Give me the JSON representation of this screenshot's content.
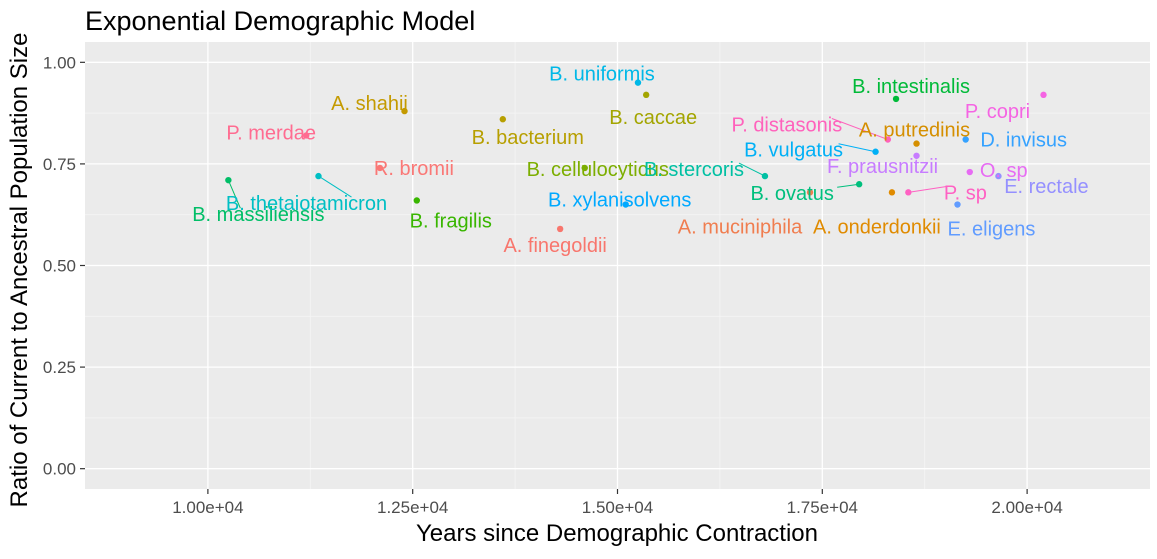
{
  "chart_data": {
    "type": "scatter",
    "title": "Exponential Demographic Model",
    "xlabel": "Years since Demographic Contraction",
    "ylabel": "Ratio of Current to Ancestral Population Size",
    "xlim": [
      8500,
      21500
    ],
    "ylim": [
      -0.05,
      1.05
    ],
    "x_ticks": [
      10000,
      12500,
      15000,
      17500,
      20000
    ],
    "x_tick_labels": [
      "1.00e+04",
      "1.25e+04",
      "1.50e+04",
      "1.75e+04",
      "2.00e+04"
    ],
    "y_ticks": [
      0,
      0.25,
      0.5,
      0.75,
      1.0
    ],
    "y_tick_labels": [
      "0.00",
      "0.25",
      "0.50",
      "0.75",
      "1.00"
    ],
    "grid": true,
    "legend": "none",
    "panel_background": "#EBEBEB",
    "points": [
      {
        "label": "A. finegoldii",
        "x": 14300,
        "y": 0.59,
        "color": "#F8766D"
      },
      {
        "label": "A. muciniphila",
        "x": 17350,
        "y": 0.68,
        "color": "#F07D4F"
      },
      {
        "label": "A. onderdonkii",
        "x": 18350,
        "y": 0.68,
        "color": "#E08B00"
      },
      {
        "label": "A. putredinis",
        "x": 18650,
        "y": 0.8,
        "color": "#D58F00"
      },
      {
        "label": "A. shahii",
        "x": 12400,
        "y": 0.88,
        "color": "#C49A00"
      },
      {
        "label": "B. bacterium",
        "x": 13600,
        "y": 0.86,
        "color": "#B79F00"
      },
      {
        "label": "B. caccae",
        "x": 15350,
        "y": 0.92,
        "color": "#A3A500"
      },
      {
        "label": "B. cellulocyticus",
        "x": 14600,
        "y": 0.74,
        "color": "#7CAE00"
      },
      {
        "label": "B. fragilis",
        "x": 12550,
        "y": 0.66,
        "color": "#39B600"
      },
      {
        "label": "B. intestinalis",
        "x": 18400,
        "y": 0.91,
        "color": "#00BA38"
      },
      {
        "label": "B. massiliensis",
        "x": 10250,
        "y": 0.71,
        "color": "#00BE67"
      },
      {
        "label": "B. ovatus",
        "x": 17950,
        "y": 0.7,
        "color": "#00BF7D"
      },
      {
        "label": "B. stercoris",
        "x": 16800,
        "y": 0.72,
        "color": "#00C0A3"
      },
      {
        "label": "B. thetaiotamicron",
        "x": 11350,
        "y": 0.72,
        "color": "#00BFC4"
      },
      {
        "label": "B. uniformis",
        "x": 15250,
        "y": 0.95,
        "color": "#00B8E7"
      },
      {
        "label": "B. vulgatus",
        "x": 18150,
        "y": 0.78,
        "color": "#00B0F6"
      },
      {
        "label": "B. xylanisolvens",
        "x": 15100,
        "y": 0.65,
        "color": "#00A9FF"
      },
      {
        "label": "D. invisus",
        "x": 19250,
        "y": 0.81,
        "color": "#35A2FF"
      },
      {
        "label": "E. eligens",
        "x": 19150,
        "y": 0.65,
        "color": "#619CFF"
      },
      {
        "label": "E. rectale",
        "x": 19650,
        "y": 0.72,
        "color": "#9590FF"
      },
      {
        "label": "F. prausnitzii",
        "x": 18650,
        "y": 0.77,
        "color": "#C77CFF"
      },
      {
        "label": "O. sp",
        "x": 19300,
        "y": 0.73,
        "color": "#E76BF3"
      },
      {
        "label": "P. copri",
        "x": 20200,
        "y": 0.92,
        "color": "#F564E3"
      },
      {
        "label": "P. distasonis",
        "x": 18300,
        "y": 0.81,
        "color": "#FF62BC"
      },
      {
        "label": "P. merdae",
        "x": 11200,
        "y": 0.82,
        "color": "#FF6C91"
      },
      {
        "label": "P. sp",
        "x": 18550,
        "y": 0.68,
        "color": "#FF61C3"
      },
      {
        "label": "R. bromii",
        "x": 12100,
        "y": 0.74,
        "color": "#FA7876"
      }
    ]
  }
}
